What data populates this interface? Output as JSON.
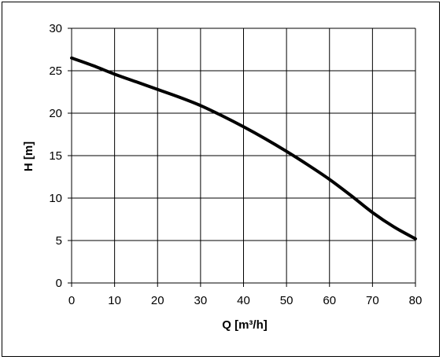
{
  "chart_data": {
    "type": "line",
    "title": "",
    "xlabel": "Q [m³/h]",
    "ylabel": "H [m]",
    "xlim": [
      0,
      80
    ],
    "ylim": [
      0,
      30
    ],
    "x_ticks": [
      "0",
      "10",
      "20",
      "30",
      "40",
      "50",
      "60",
      "70",
      "80"
    ],
    "y_ticks": [
      "0",
      "5",
      "10",
      "15",
      "20",
      "25",
      "30"
    ],
    "grid": true,
    "line_color": "#000000",
    "series": [
      {
        "x": [
          0,
          5,
          10,
          15,
          20,
          25,
          30,
          35,
          40,
          45,
          50,
          55,
          60,
          65,
          70,
          75,
          80
        ],
        "y": [
          26.5,
          25.6,
          24.6,
          23.7,
          22.8,
          21.9,
          20.9,
          19.7,
          18.4,
          17.0,
          15.5,
          13.9,
          12.2,
          10.3,
          8.3,
          6.6,
          5.2
        ]
      }
    ]
  }
}
